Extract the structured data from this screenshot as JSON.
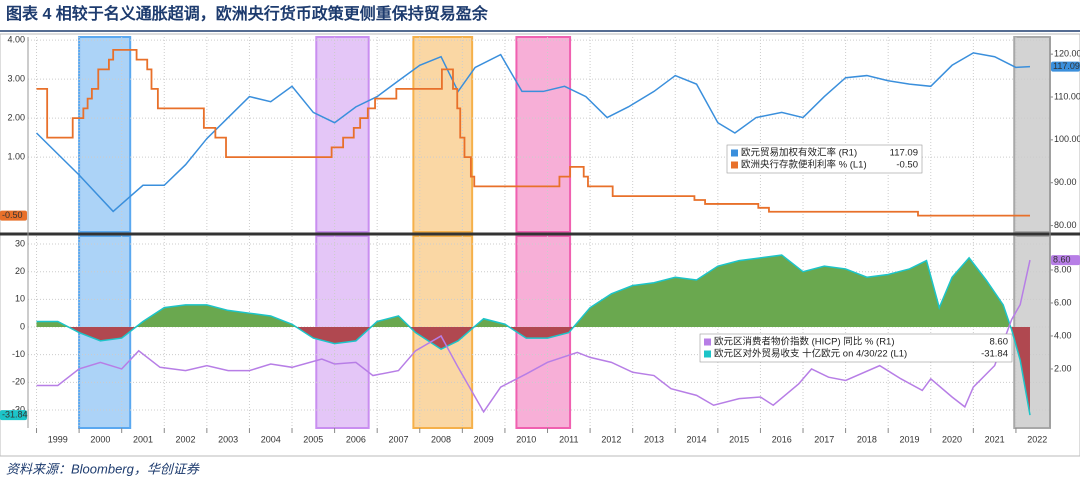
{
  "title": "图表 4  相较于名义通胀超调，欧洲央行货币政策更侧重保持贸易盈余",
  "source": "资料来源：Bloomberg，华创证券",
  "highlights": [
    {
      "x0": 2000.0,
      "x1": 2001.2,
      "color": "#5aa8f0"
    },
    {
      "x0": 2005.57,
      "x1": 2006.8,
      "color": "#c98ef0"
    },
    {
      "x0": 2007.85,
      "x1": 2009.23,
      "color": "#f5b04a"
    },
    {
      "x0": 2010.27,
      "x1": 2011.53,
      "color": "#f060b0"
    },
    {
      "x0": 2021.96,
      "x1": 2022.8,
      "color": "#a8a8a8"
    }
  ],
  "chart_data": [
    {
      "type": "line",
      "xlim": [
        1998.8,
        2022.8
      ],
      "ylim": [
        -0.92,
        4.08
      ],
      "yticks": [
        {
          "value": 4,
          "label": "4.00"
        },
        {
          "value": 3,
          "label": "3.00"
        },
        {
          "value": 2,
          "label": "2.00"
        },
        {
          "value": 1,
          "label": "1.00"
        }
      ],
      "y2lim": [
        78.5,
        124
      ],
      "y2ticks": [
        {
          "value": 120,
          "label": "120.00"
        },
        {
          "value": 110,
          "label": "110.00"
        },
        {
          "value": 100,
          "label": "100.00"
        },
        {
          "value": 90,
          "label": "90.00"
        },
        {
          "value": 80,
          "label": "80.00"
        }
      ],
      "series": [
        {
          "name": "欧元贸易加权有效汇率 (R1)",
          "color": "#3a8fdc",
          "axis": "y2",
          "legend_value": "117.09",
          "x": [
            1999.0,
            1999.5,
            2000.0,
            2000.8,
            2001.5,
            2002.0,
            2002.5,
            2003.0,
            2003.5,
            2004.0,
            2004.5,
            2005.0,
            2005.5,
            2006.0,
            2006.5,
            2007.0,
            2007.5,
            2008.0,
            2008.5,
            2008.9,
            2009.3,
            2009.9,
            2010.4,
            2010.9,
            2011.4,
            2011.9,
            2012.4,
            2012.9,
            2013.5,
            2014.0,
            2014.5,
            2015.0,
            2015.4,
            2015.9,
            2016.5,
            2017.0,
            2017.5,
            2018.0,
            2018.5,
            2019.0,
            2019.5,
            2020.0,
            2020.5,
            2021.0,
            2021.5,
            2022.0,
            2022.33
          ],
          "values": [
            101.6,
            96.7,
            91.8,
            83.3,
            89.4,
            89.4,
            94.2,
            100.3,
            105.2,
            110.1,
            108.9,
            112.5,
            106.4,
            104,
            107.7,
            110.1,
            113.8,
            117.4,
            119.4,
            111.3,
            116.9,
            119.9,
            111.3,
            111.3,
            112.5,
            110.1,
            105.2,
            107.7,
            111.3,
            115,
            113,
            104,
            101.6,
            105.2,
            106.4,
            105.2,
            110.1,
            114.5,
            115,
            113.8,
            113,
            112.5,
            117.4,
            120.3,
            119.4,
            116.9,
            117.09
          ]
        },
        {
          "name": "欧洲央行存款便利利率 % (L1)",
          "color": "#e8702a",
          "step": true,
          "legend_value": "-0.50",
          "x": [
            1999.0,
            1999.25,
            1999.85,
            2000.1,
            2000.2,
            2000.3,
            2000.45,
            2000.7,
            2000.8,
            2001.35,
            2001.6,
            2001.7,
            2001.85,
            2002.93,
            2003.2,
            2003.45,
            2005.93,
            2006.2,
            2006.45,
            2006.6,
            2006.78,
            2006.95,
            2007.45,
            2008.52,
            2008.78,
            2008.88,
            2008.95,
            2009.05,
            2009.2,
            2009.28,
            2011.28,
            2011.53,
            2011.85,
            2011.95,
            2012.53,
            2014.45,
            2014.7,
            2015.95,
            2016.2,
            2019.7,
            2022.33
          ],
          "values": [
            2.75,
            1.5,
            2.0,
            2.25,
            2.5,
            2.75,
            3.25,
            3.5,
            3.75,
            3.5,
            3.25,
            2.75,
            2.25,
            1.75,
            1.5,
            1.0,
            1.25,
            1.5,
            1.75,
            2.0,
            2.25,
            2.5,
            2.75,
            3.25,
            2.75,
            2.25,
            1.5,
            1.0,
            0.5,
            0.25,
            0.5,
            0.75,
            0.5,
            0.25,
            0,
            -0.1,
            -0.2,
            -0.3,
            -0.4,
            -0.5,
            -0.5
          ]
        }
      ]
    },
    {
      "type": "line",
      "xlim": [
        1998.8,
        2022.8
      ],
      "xticks": [
        1999,
        2000,
        2001,
        2002,
        2003,
        2004,
        2005,
        2006,
        2007,
        2008,
        2009,
        2010,
        2011,
        2012,
        2013,
        2014,
        2015,
        2016,
        2017,
        2018,
        2019,
        2020,
        2021,
        2022
      ],
      "ylim": [
        -36.5,
        32.9
      ],
      "yticks": [
        30,
        20,
        10,
        0,
        -10,
        -20,
        -30
      ],
      "y2lim": [
        -1.58,
        10.06
      ],
      "y2ticks": [
        {
          "value": 8,
          "label": "8.00"
        },
        {
          "value": 6,
          "label": "6.00"
        },
        {
          "value": 4,
          "label": "4.00"
        },
        {
          "value": 2,
          "label": "2.00"
        }
      ],
      "series": [
        {
          "name": "欧元区对外贸易收支 十亿欧元 on 4/30/22 (L1)",
          "color": "#1cc4c8",
          "area": true,
          "positive_color": "#6aa84f",
          "negative_color": "#b04850",
          "legend_value": "-31.84",
          "x": [
            1999.0,
            1999.5,
            2000.0,
            2000.5,
            2001.0,
            2001.5,
            2002.0,
            2002.5,
            2003.0,
            2003.5,
            2004.0,
            2004.5,
            2005.0,
            2005.5,
            2006.0,
            2006.5,
            2007.0,
            2007.5,
            2007.9,
            2008.5,
            2008.9,
            2009.5,
            2010.0,
            2010.5,
            2011.0,
            2011.5,
            2012.0,
            2012.5,
            2013.0,
            2013.5,
            2014.0,
            2014.5,
            2015.0,
            2015.5,
            2016.0,
            2016.5,
            2017.0,
            2017.5,
            2018.0,
            2018.5,
            2019.0,
            2019.5,
            2019.9,
            2020.2,
            2020.5,
            2020.9,
            2021.3,
            2021.7,
            2021.9,
            2022.1,
            2022.33
          ],
          "values": [
            2,
            2,
            -2,
            -5,
            -4,
            2,
            7,
            8,
            8,
            6,
            5,
            4,
            1,
            -4,
            -6,
            -5,
            2,
            4,
            -2,
            -8,
            -5,
            3,
            1,
            -4,
            -4,
            -2,
            7,
            12,
            15,
            16,
            18,
            17,
            22,
            24,
            25,
            26,
            20,
            22,
            21,
            18,
            19,
            21,
            24,
            7,
            18,
            25,
            17,
            8,
            -1,
            -12,
            -31.84
          ]
        },
        {
          "name": "欧元区消费者物价指数 (HICP) 同比 % (R1)",
          "color": "#b77ee6",
          "axis": "y2",
          "legend_value": "8.60",
          "x": [
            1999.0,
            1999.5,
            2000.0,
            2000.5,
            2001.0,
            2001.4,
            2001.9,
            2002.5,
            2003.0,
            2003.5,
            2004.0,
            2004.5,
            2005.0,
            2005.7,
            2006.0,
            2006.5,
            2006.9,
            2007.5,
            2007.9,
            2008.5,
            2008.9,
            2009.5,
            2009.9,
            2010.5,
            2011.0,
            2011.7,
            2012.0,
            2012.5,
            2013.0,
            2013.5,
            2013.9,
            2014.5,
            2014.9,
            2015.5,
            2016.0,
            2016.3,
            2016.9,
            2017.2,
            2017.6,
            2018.0,
            2018.8,
            2019.3,
            2019.8,
            2020.0,
            2020.5,
            2020.8,
            2021.0,
            2021.5,
            2021.9,
            2022.1,
            2022.33
          ],
          "values": [
            1.0,
            1.0,
            2.0,
            2.4,
            2.0,
            3.1,
            2.1,
            1.9,
            2.2,
            1.9,
            1.9,
            2.3,
            2.1,
            2.6,
            2.3,
            2.4,
            1.6,
            1.9,
            3.1,
            4.0,
            2.1,
            -0.6,
            0.9,
            1.7,
            2.4,
            3.0,
            2.7,
            2.4,
            1.8,
            1.6,
            0.8,
            0.4,
            -0.2,
            0.2,
            0.3,
            -0.2,
            1.1,
            2.0,
            1.5,
            1.3,
            2.2,
            1.4,
            0.7,
            1.4,
            0.3,
            -0.3,
            0.9,
            2.2,
            5.0,
            5.9,
            8.6
          ]
        }
      ]
    }
  ]
}
